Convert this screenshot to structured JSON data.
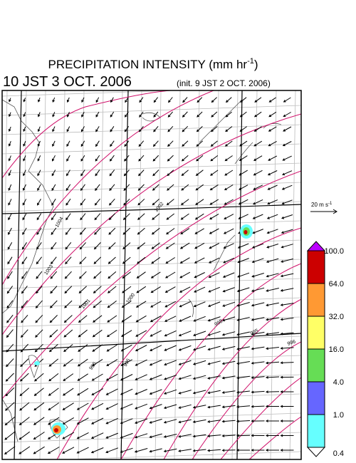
{
  "header": {
    "title": "PRECIPITATION INTENSITY (mm hr",
    "title_unit_power": "-1",
    "title_close": ")",
    "valid_time": "10 JST 3 OCT. 2006",
    "init_time": "(init. 9 JST 2 OCT. 2006)"
  },
  "wind_scale": {
    "label": "20 m s",
    "label_power": "-1"
  },
  "colorbar": {
    "labels": [
      "100.0",
      "64.0",
      "32.0",
      "16.0",
      "4.0",
      "1.0",
      "0.4"
    ],
    "colors": [
      "#cc0000",
      "#ff9933",
      "#ffff66",
      "#66dd55",
      "#6666ff",
      "#66ffff"
    ],
    "over_color": "#bb00ff",
    "under_color": "#ffffff"
  },
  "isobars": [
    "1004",
    "1003",
    "1002",
    "1000",
    "1001",
    "998",
    "996",
    "995",
    "995",
    "996"
  ]
}
